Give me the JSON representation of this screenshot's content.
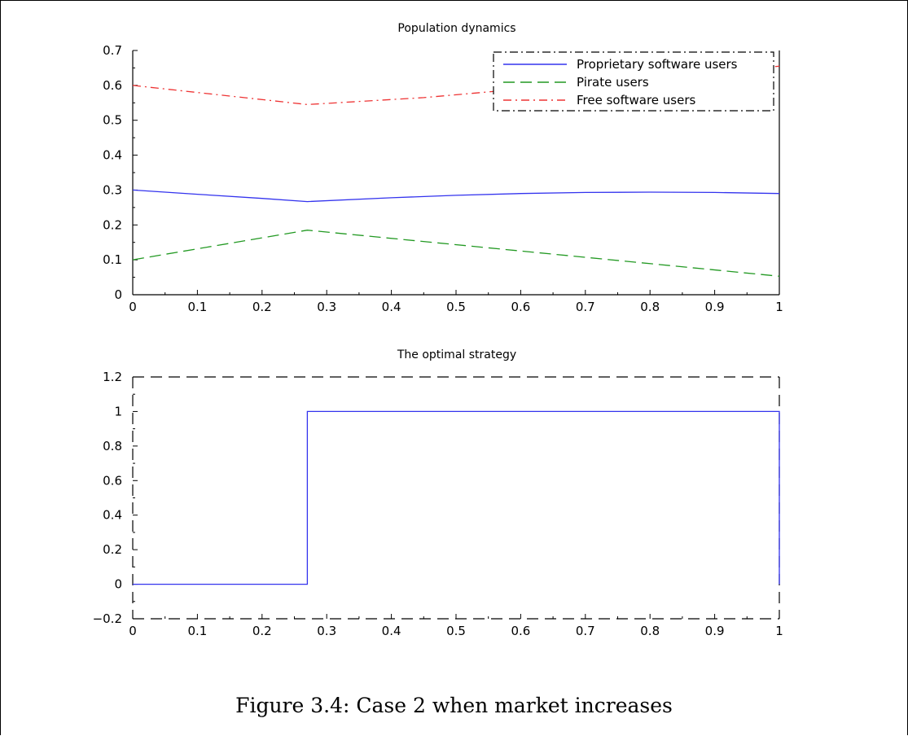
{
  "caption": "Figure 3.4: Case 2 when market increases",
  "chart_data": [
    {
      "type": "line",
      "title": "Population dynamics",
      "xlabel": "",
      "ylabel": "",
      "xlim": [
        0,
        1
      ],
      "ylim": [
        0,
        0.7
      ],
      "xticks": [
        "0",
        "0.1",
        "0.2",
        "0.3",
        "0.4",
        "0.5",
        "0.6",
        "0.7",
        "0.8",
        "0.9",
        "1"
      ],
      "yticks": [
        "0",
        "0.1",
        "0.2",
        "0.3",
        "0.4",
        "0.5",
        "0.6",
        "0.7"
      ],
      "legend_position": "top-right",
      "series": [
        {
          "name": "Proprietary software users",
          "color": "#3333ee",
          "style": "solid",
          "x": [
            0,
            0.1,
            0.2,
            0.27,
            0.4,
            0.5,
            0.6,
            0.7,
            0.8,
            0.9,
            1.0
          ],
          "y": [
            0.3,
            0.288,
            0.276,
            0.267,
            0.278,
            0.285,
            0.29,
            0.293,
            0.294,
            0.293,
            0.29
          ]
        },
        {
          "name": "Pirate users",
          "color": "#229922",
          "style": "dashed",
          "x": [
            0,
            0.27,
            1.0
          ],
          "y": [
            0.1,
            0.185,
            0.053
          ]
        },
        {
          "name": "Free software users",
          "color": "#ee3333",
          "style": "dashdot",
          "x": [
            0,
            0.27,
            0.45,
            1.0
          ],
          "y": [
            0.6,
            0.545,
            0.565,
            0.655
          ]
        }
      ]
    },
    {
      "type": "line",
      "title": "The optimal strategy",
      "xlabel": "",
      "ylabel": "",
      "xlim": [
        0,
        1
      ],
      "ylim": [
        -0.2,
        1.2
      ],
      "xticks": [
        "0",
        "0.1",
        "0.2",
        "0.3",
        "0.4",
        "0.5",
        "0.6",
        "0.7",
        "0.8",
        "0.9",
        "1"
      ],
      "yticks": [
        "−0.2",
        "0",
        "0.2",
        "0.4",
        "0.6",
        "0.8",
        "1",
        "1.2"
      ],
      "series": [
        {
          "color": "#3333ee",
          "style": "solid",
          "x": [
            0,
            0.27,
            0.27,
            1.0,
            1.0
          ],
          "y": [
            0,
            0,
            1,
            1,
            0
          ]
        }
      ]
    }
  ]
}
